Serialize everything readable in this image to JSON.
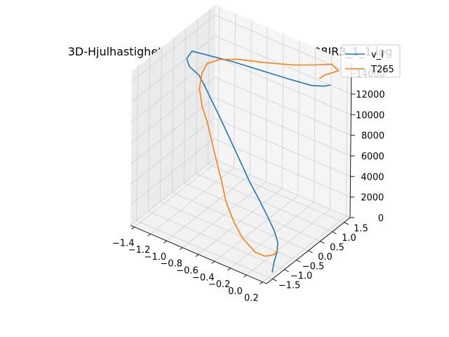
{
  "chart_data": {
    "type": "line3d",
    "title": "3D-Hjulhastighet from test: test/t265/_190508JR3_1_1.log",
    "legend_position": "top-right",
    "grid": true,
    "x_ticks": [
      -1.4,
      -1.2,
      -1.0,
      -0.8,
      -0.6,
      -0.4,
      -0.2,
      0.0,
      0.2
    ],
    "x_tick_labels": [
      "−1.4",
      "−1.2",
      "−1.0",
      "−0.8",
      "−0.6",
      "−0.4",
      "−0.2",
      "0.0",
      "0.2"
    ],
    "y_ticks": [
      -1.5,
      -1.0,
      -0.5,
      0.0,
      0.5,
      1.0,
      1.5
    ],
    "y_tick_labels": [
      "−1.5",
      "−1.0",
      "−0.5",
      "0.0",
      "0.5",
      "1.0",
      "1.5"
    ],
    "z_ticks": [
      0,
      2000,
      4000,
      6000,
      8000,
      10000,
      12000,
      14000
    ],
    "z_tick_labels": [
      "0",
      "2000",
      "4000",
      "6000",
      "8000",
      "10000",
      "12000",
      "14000"
    ],
    "xlim": [
      -1.45,
      0.25
    ],
    "ylim": [
      -1.75,
      1.75
    ],
    "zlim": [
      0,
      15000
    ],
    "series": [
      {
        "name": "v_l",
        "color": "#1f77b4",
        "points": [
          [
            0.18,
            -1.28,
            0
          ],
          [
            0.18,
            -1.2,
            900
          ],
          [
            0.17,
            -1.05,
            1500
          ],
          [
            0.12,
            -0.85,
            1900
          ],
          [
            0.0,
            -0.6,
            2200
          ],
          [
            -0.15,
            -0.35,
            2500
          ],
          [
            -0.35,
            -0.05,
            3000
          ],
          [
            -0.55,
            0.2,
            3700
          ],
          [
            -0.75,
            0.45,
            4700
          ],
          [
            -0.95,
            0.65,
            6000
          ],
          [
            -1.1,
            0.72,
            7500
          ],
          [
            -1.17,
            0.62,
            9000
          ],
          [
            -1.2,
            0.45,
            10500
          ],
          [
            -1.22,
            0.3,
            11600
          ],
          [
            -1.28,
            0.1,
            12600
          ],
          [
            -1.3,
            0.05,
            13400
          ],
          [
            -1.25,
            0.1,
            14200
          ],
          [
            -0.8,
            0.3,
            14300
          ],
          [
            -0.2,
            0.6,
            14100
          ],
          [
            0.05,
            0.75,
            14000
          ],
          [
            0.15,
            0.95,
            13900
          ],
          [
            0.2,
            1.05,
            14000
          ]
        ]
      },
      {
        "name": "T265",
        "color": "#ff7f0e",
        "points": [
          [
            0.18,
            -1.05,
            1800
          ],
          [
            0.15,
            -1.1,
            1300
          ],
          [
            0.05,
            -1.15,
            900
          ],
          [
            -0.1,
            -1.05,
            600
          ],
          [
            -0.35,
            -0.75,
            600
          ],
          [
            -0.55,
            -0.45,
            1000
          ],
          [
            -0.75,
            -0.1,
            1600
          ],
          [
            -0.9,
            0.2,
            2700
          ],
          [
            -1.05,
            0.45,
            4000
          ],
          [
            -1.15,
            0.6,
            5200
          ],
          [
            -1.2,
            0.6,
            6600
          ],
          [
            -1.25,
            0.55,
            8000
          ],
          [
            -1.3,
            0.6,
            9500
          ],
          [
            -1.3,
            0.7,
            10800
          ],
          [
            -1.25,
            0.75,
            11800
          ],
          [
            -1.1,
            0.75,
            12700
          ],
          [
            -0.9,
            0.85,
            13200
          ],
          [
            -0.6,
            0.95,
            13700
          ],
          [
            -0.3,
            1.15,
            14100
          ],
          [
            -0.1,
            1.35,
            14400
          ],
          [
            0.05,
            1.6,
            14500
          ],
          [
            0.15,
            1.55,
            14300
          ],
          [
            0.05,
            1.3,
            14000
          ],
          [
            0.0,
            1.25,
            13600
          ]
        ]
      }
    ]
  }
}
